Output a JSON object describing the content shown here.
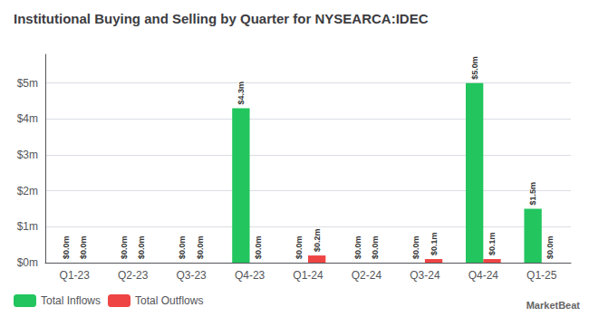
{
  "chart_data": {
    "type": "bar",
    "title": "Institutional Buying and Selling by Quarter for NYSEARCA:IDEC",
    "categories": [
      "Q1-23",
      "Q2-23",
      "Q3-23",
      "Q4-23",
      "Q1-24",
      "Q2-24",
      "Q3-24",
      "Q4-24",
      "Q1-25"
    ],
    "series": [
      {
        "name": "Total Inflows",
        "color": "#22c55e",
        "values": [
          0.0,
          0.0,
          0.0,
          4.3,
          0.0,
          0.0,
          0.0,
          5.0,
          1.5
        ],
        "value_labels": [
          "$0.0m",
          "$0.0m",
          "$0.0m",
          "$4.3m",
          "$0.0m",
          "$0.0m",
          "$0.0m",
          "$5.0m",
          "$1.5m"
        ]
      },
      {
        "name": "Total Outflows",
        "color": "#ef4444",
        "values": [
          0.0,
          0.0,
          0.0,
          0.0,
          0.2,
          0.0,
          0.1,
          0.1,
          0.0
        ],
        "value_labels": [
          "$0.0m",
          "$0.0m",
          "$0.0m",
          "$0.0m",
          "$0.2m",
          "$0.0m",
          "$0.1m",
          "$0.1m",
          "$0.0m"
        ]
      }
    ],
    "ylim": [
      0,
      5.8
    ],
    "yticks": [
      {
        "value": 0,
        "label": "$0m"
      },
      {
        "value": 1,
        "label": "$1m"
      },
      {
        "value": 2,
        "label": "$2m"
      },
      {
        "value": 3,
        "label": "$3m"
      },
      {
        "value": 4,
        "label": "$4m"
      },
      {
        "value": 5,
        "label": "$5m"
      }
    ],
    "grid": true,
    "legend": "bottom left",
    "data_labels": true,
    "annotations": [
      "MarketBeat"
    ]
  }
}
